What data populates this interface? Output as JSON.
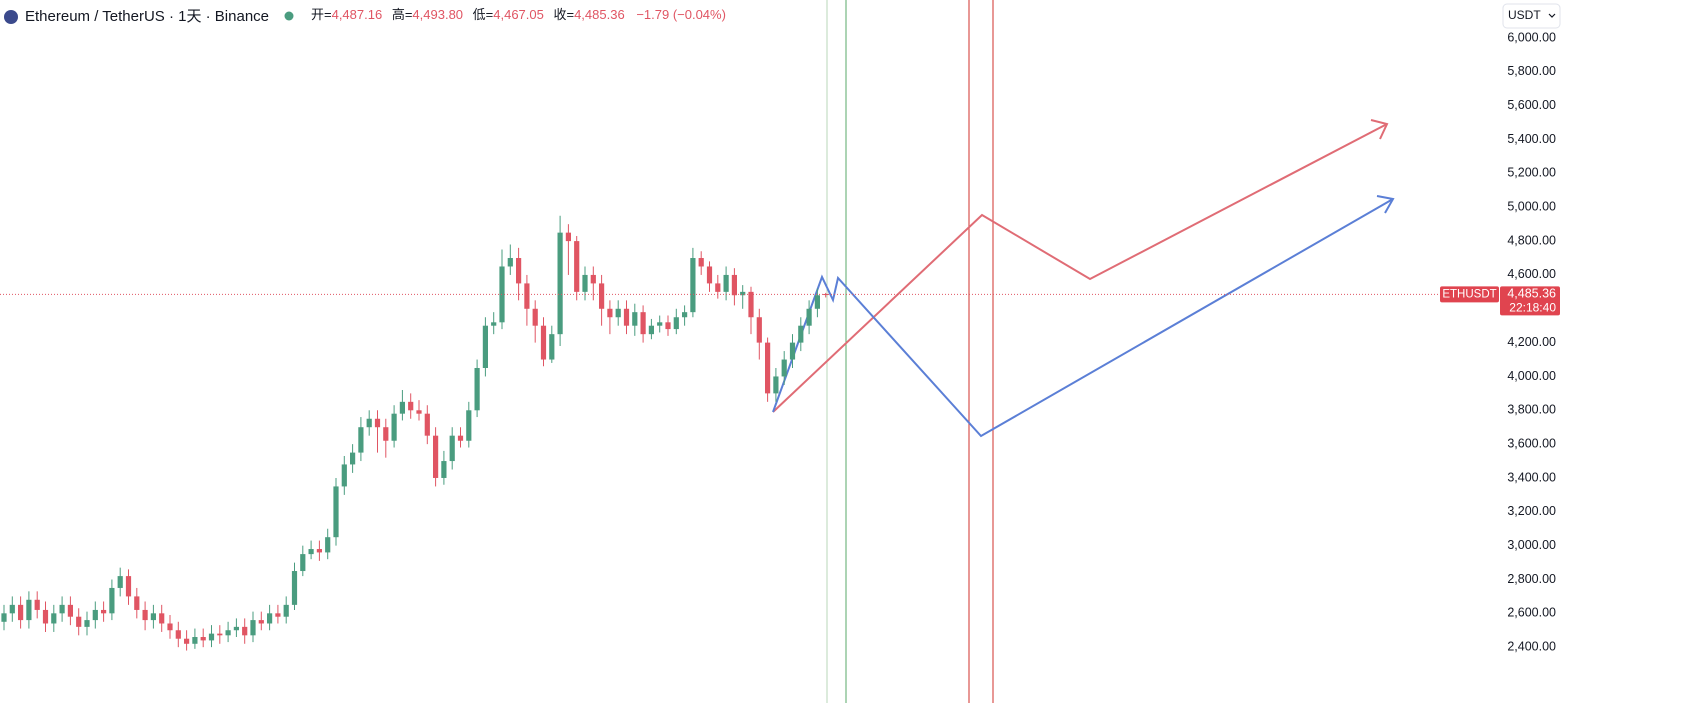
{
  "chart_data": {
    "type": "candlestick",
    "title": "Ethereum / TetherUS · 1天 · Binance",
    "header": {
      "open_label": "开=",
      "open": "4,487.16",
      "high_label": "高=",
      "high": "4,493.80",
      "low_label": "低=",
      "low": "4,467.05",
      "close_label": "收=",
      "close": "4,485.36",
      "change": "−1.79 (−0.04%)"
    },
    "currency": "USDT",
    "symbol": "ETHUSDT",
    "last_price": {
      "value": 4485.36,
      "label": "4,485.36"
    },
    "countdown": "22:18:40",
    "up_color": "#4a9c7f",
    "down_color": "#e05563",
    "grid": false,
    "ylim": [
      2070,
      6225
    ],
    "yticks": [
      {
        "value": 2400,
        "label": "2,400.00"
      },
      {
        "value": 2600,
        "label": "2,600.00"
      },
      {
        "value": 2800,
        "label": "2,800.00"
      },
      {
        "value": 3000,
        "label": "3,000.00"
      },
      {
        "value": 3200,
        "label": "3,200.00"
      },
      {
        "value": 3400,
        "label": "3,400.00"
      },
      {
        "value": 3600,
        "label": "3,600.00"
      },
      {
        "value": 3800,
        "label": "3,800.00"
      },
      {
        "value": 4000,
        "label": "4,000.00"
      },
      {
        "value": 4200,
        "label": "4,200.00"
      },
      {
        "value": 4400,
        "label": "4,400.00"
      },
      {
        "value": 4600,
        "label": "4,600.00"
      },
      {
        "value": 4800,
        "label": "4,800.00"
      },
      {
        "value": 5000,
        "label": "5,000.00"
      },
      {
        "value": 5200,
        "label": "5,200.00"
      },
      {
        "value": 5400,
        "label": "5,400.00"
      },
      {
        "value": 5600,
        "label": "5,600.00"
      },
      {
        "value": 5800,
        "label": "5,800.00"
      },
      {
        "value": 6000,
        "label": "6,000.00"
      }
    ],
    "open": [
      2550,
      2600,
      2650,
      2560,
      2680,
      2620,
      2540,
      2600,
      2650,
      2580,
      2520,
      2560,
      2620,
      2600,
      2750,
      2820,
      2700,
      2620,
      2560,
      2600,
      2540,
      2500,
      2450,
      2420,
      2460,
      2440,
      2480,
      2470,
      2500,
      2520,
      2470,
      2560,
      2540,
      2600,
      2580,
      2650,
      2850,
      2950,
      2980,
      2960,
      3050,
      3350,
      3480,
      3550,
      3700,
      3750,
      3700,
      3620,
      3780,
      3850,
      3800,
      3780,
      3650,
      3400,
      3500,
      3650,
      3620,
      3800,
      4050,
      4300,
      4320,
      4650,
      4700,
      4550,
      4400,
      4300,
      4100,
      4250,
      4850,
      4800,
      4500,
      4600,
      4550,
      4400,
      4350,
      4400,
      4300,
      4380,
      4250,
      4300,
      4320,
      4280,
      4350,
      4380,
      4700,
      4650,
      4550,
      4500,
      4600,
      4480,
      4500,
      4350,
      4200,
      3900,
      4000,
      4100,
      4200,
      4300,
      4400,
      4487.16
    ],
    "high": [
      2650,
      2700,
      2700,
      2730,
      2730,
      2670,
      2650,
      2700,
      2700,
      2630,
      2610,
      2670,
      2670,
      2800,
      2870,
      2860,
      2750,
      2670,
      2650,
      2650,
      2590,
      2550,
      2500,
      2510,
      2510,
      2530,
      2530,
      2550,
      2570,
      2570,
      2610,
      2610,
      2650,
      2650,
      2700,
      2900,
      3000,
      3030,
      3030,
      3100,
      3400,
      3530,
      3600,
      3760,
      3800,
      3800,
      3750,
      3830,
      3920,
      3900,
      3860,
      3830,
      3700,
      3560,
      3700,
      3700,
      3850,
      4100,
      4350,
      4380,
      4750,
      4780,
      4760,
      4600,
      4450,
      4350,
      4300,
      4950,
      4900,
      4830,
      4650,
      4650,
      4600,
      4450,
      4450,
      4450,
      4430,
      4420,
      4340,
      4360,
      4360,
      4400,
      4420,
      4760,
      4740,
      4680,
      4600,
      4650,
      4640,
      4540,
      4530,
      4400,
      4230,
      4050,
      4150,
      4250,
      4350,
      4450,
      4520,
      4493.8
    ],
    "low": [
      2500,
      2550,
      2510,
      2510,
      2570,
      2490,
      2490,
      2550,
      2530,
      2470,
      2470,
      2510,
      2550,
      2560,
      2700,
      2650,
      2570,
      2500,
      2510,
      2490,
      2450,
      2400,
      2380,
      2390,
      2400,
      2400,
      2420,
      2430,
      2460,
      2420,
      2430,
      2500,
      2500,
      2540,
      2540,
      2620,
      2820,
      2920,
      2910,
      2920,
      3000,
      3300,
      3430,
      3500,
      3650,
      3550,
      3520,
      3580,
      3740,
      3750,
      3740,
      3600,
      3350,
      3360,
      3450,
      3580,
      3580,
      3760,
      4000,
      4250,
      4280,
      4600,
      4450,
      4300,
      4200,
      4060,
      4080,
      4180,
      4600,
      4450,
      4450,
      4450,
      4300,
      4250,
      4300,
      4250,
      4240,
      4200,
      4220,
      4260,
      4240,
      4250,
      4300,
      4350,
      4600,
      4500,
      4460,
      4450,
      4420,
      4400,
      4250,
      4100,
      3850,
      3850,
      3950,
      4050,
      4150,
      4250,
      4350,
      4467.05
    ],
    "close": [
      2600,
      2650,
      2560,
      2680,
      2620,
      2540,
      2600,
      2650,
      2580,
      2520,
      2560,
      2620,
      2600,
      2750,
      2820,
      2700,
      2620,
      2560,
      2600,
      2540,
      2500,
      2450,
      2420,
      2460,
      2440,
      2480,
      2470,
      2500,
      2520,
      2470,
      2560,
      2540,
      2600,
      2580,
      2650,
      2850,
      2950,
      2980,
      2960,
      3050,
      3350,
      3480,
      3550,
      3700,
      3750,
      3700,
      3620,
      3780,
      3850,
      3800,
      3780,
      3650,
      3400,
      3500,
      3650,
      3620,
      3800,
      4050,
      4300,
      4320,
      4650,
      4700,
      4550,
      4400,
      4300,
      4100,
      4250,
      4850,
      4800,
      4500,
      4600,
      4550,
      4400,
      4350,
      4400,
      4300,
      4380,
      4250,
      4300,
      4320,
      4280,
      4350,
      4380,
      4700,
      4650,
      4550,
      4500,
      4600,
      4480,
      4500,
      4350,
      4200,
      3900,
      4000,
      4100,
      4200,
      4300,
      4400,
      4480,
      4485.36
    ]
  }
}
